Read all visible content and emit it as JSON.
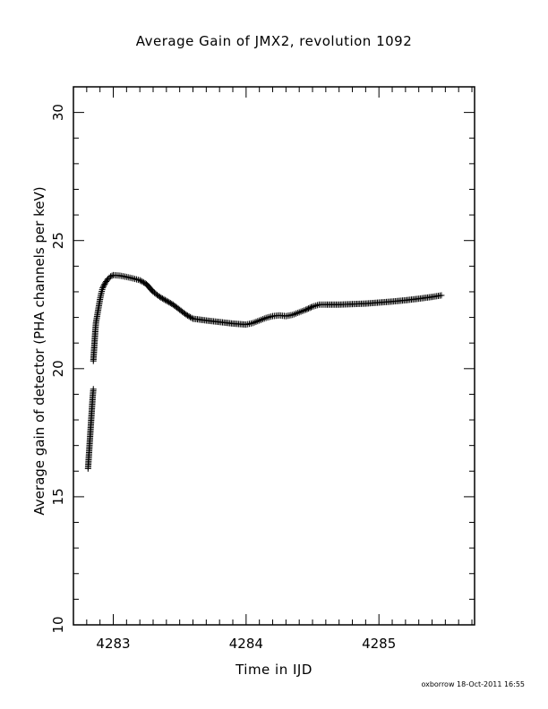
{
  "chart_data": {
    "type": "scatter",
    "title": "Average Gain of JMX2, revolution 1092",
    "xlabel": "Time in IJD",
    "ylabel": "Average gain of detector (PHA channels per keV)",
    "xlim": [
      4282.7,
      4285.72
    ],
    "ylim": [
      10,
      31
    ],
    "xticks": [
      "4283",
      "4284",
      "4285"
    ],
    "yticks": [
      "10",
      "15",
      "20",
      "25",
      "30"
    ],
    "marker": "+",
    "grid": false,
    "footer": "oxborrow 18-Oct-2011 16:55",
    "series": [
      {
        "points": [
          [
            4282.81,
            16.1
          ],
          [
            4282.815,
            16.5
          ],
          [
            4282.82,
            16.9
          ],
          [
            4282.825,
            17.3
          ],
          [
            4282.83,
            17.7
          ],
          [
            4282.835,
            18.1
          ],
          [
            4282.84,
            18.5
          ],
          [
            4282.845,
            18.9
          ],
          [
            4282.85,
            19.2
          ],
          [
            4282.85,
            20.3
          ],
          [
            4282.855,
            20.7
          ],
          [
            4282.86,
            21.1
          ],
          [
            4282.865,
            21.5
          ],
          [
            4282.87,
            21.8
          ],
          [
            4282.88,
            22.1
          ],
          [
            4282.89,
            22.4
          ],
          [
            4282.9,
            22.7
          ],
          [
            4282.91,
            22.95
          ],
          [
            4282.92,
            23.15
          ],
          [
            4282.94,
            23.35
          ],
          [
            4282.96,
            23.5
          ],
          [
            4282.98,
            23.6
          ],
          [
            4283.0,
            23.65
          ],
          [
            4283.05,
            23.63
          ],
          [
            4283.1,
            23.58
          ],
          [
            4283.15,
            23.52
          ],
          [
            4283.2,
            23.45
          ],
          [
            4283.25,
            23.3
          ],
          [
            4283.3,
            23.0
          ],
          [
            4283.35,
            22.8
          ],
          [
            4283.4,
            22.65
          ],
          [
            4283.45,
            22.5
          ],
          [
            4283.5,
            22.3
          ],
          [
            4283.55,
            22.1
          ],
          [
            4283.6,
            21.95
          ],
          [
            4283.7,
            21.88
          ],
          [
            4283.8,
            21.82
          ],
          [
            4283.9,
            21.76
          ],
          [
            4284.0,
            21.72
          ],
          [
            4284.05,
            21.78
          ],
          [
            4284.1,
            21.88
          ],
          [
            4284.15,
            21.98
          ],
          [
            4284.2,
            22.05
          ],
          [
            4284.25,
            22.08
          ],
          [
            4284.3,
            22.05
          ],
          [
            4284.35,
            22.1
          ],
          [
            4284.4,
            22.2
          ],
          [
            4284.45,
            22.3
          ],
          [
            4284.5,
            22.42
          ],
          [
            4284.55,
            22.5
          ],
          [
            4284.6,
            22.5
          ],
          [
            4284.7,
            22.5
          ],
          [
            4284.8,
            22.52
          ],
          [
            4284.9,
            22.54
          ],
          [
            4285.0,
            22.58
          ],
          [
            4285.1,
            22.62
          ],
          [
            4285.2,
            22.67
          ],
          [
            4285.3,
            22.73
          ],
          [
            4285.4,
            22.8
          ],
          [
            4285.47,
            22.86
          ]
        ]
      }
    ]
  }
}
